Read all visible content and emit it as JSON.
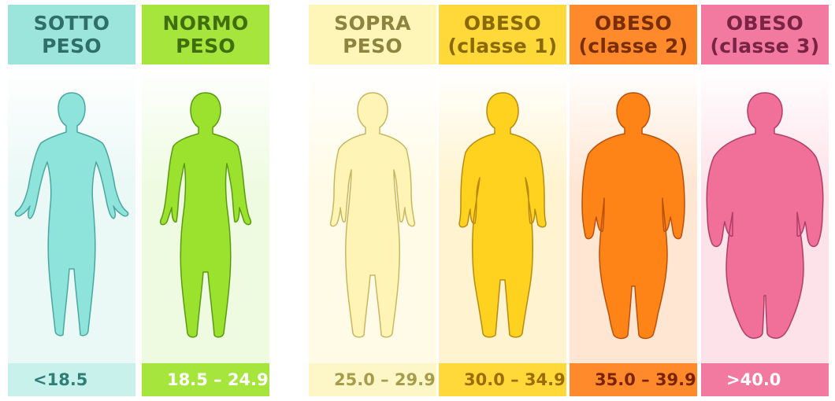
{
  "categories": [
    {
      "label_line1": "SOTTO",
      "label_line2": "PESO",
      "range": "<18.5",
      "figure_icon": "slim-body-silhouette-icon",
      "colors": {
        "head": "#9ce5dd",
        "head_text": "#2f6f67",
        "light": "#eaf9f6",
        "foot": "#c9f1ec",
        "foot_text": "#2e7f77",
        "figure": "#8ee3da",
        "stroke": "#4aa7a0"
      }
    },
    {
      "label_line1": "NORMO",
      "label_line2": "PESO",
      "range": "18.5 – 24.9",
      "figure_icon": "normal-body-silhouette-icon",
      "colors": {
        "head": "#a6e53c",
        "head_text": "#3f6f0c",
        "light": "#eefbe0",
        "foot": "#a6e53c",
        "foot_text": "#ffffff",
        "figure": "#9be22e",
        "stroke": "#5a9a12"
      }
    },
    {
      "label_line1": "SOPRA",
      "label_line2": "PESO",
      "range": "25.0 – 29.9",
      "figure_icon": "overweight-body-silhouette-icon",
      "colors": {
        "head": "#fdf6b8",
        "head_text": "#8d8440",
        "light": "#fffbe6",
        "foot": "#fdf7c8",
        "foot_text": "#a79c4a",
        "figure": "#fdf4b6",
        "stroke": "#c9b760"
      }
    },
    {
      "label_line1": "OBESO",
      "label_line2": "(classe 1)",
      "range": "30.0 – 34.9",
      "figure_icon": "obese-class-1-body-silhouette-icon",
      "colors": {
        "head": "#ffd83a",
        "head_text": "#8a6a05",
        "light": "#fff4cf",
        "foot": "#ffd83a",
        "foot_text": "#9a6d06",
        "figure": "#ffd21f",
        "stroke": "#b88a10"
      }
    },
    {
      "label_line1": "OBESO",
      "label_line2": "(classe 2)",
      "range": "35.0 – 39.9",
      "figure_icon": "obese-class-2-body-silhouette-icon",
      "colors": {
        "head": "#ff8a2c",
        "head_text": "#7a2e05",
        "light": "#ffe6d2",
        "foot": "#ff8a2c",
        "foot_text": "#7a2405",
        "figure": "#ff8418",
        "stroke": "#b9500c"
      }
    },
    {
      "label_line1": "OBESO",
      "label_line2": "(classe 3)",
      "range": ">40.0",
      "figure_icon": "obese-class-3-body-silhouette-icon",
      "colors": {
        "head": "#f27aa0",
        "head_text": "#7a2445",
        "light": "#fde2ea",
        "foot": "#f27aa0",
        "foot_text": "#ffffff",
        "figure": "#f0709a",
        "stroke": "#b03d68"
      }
    }
  ]
}
